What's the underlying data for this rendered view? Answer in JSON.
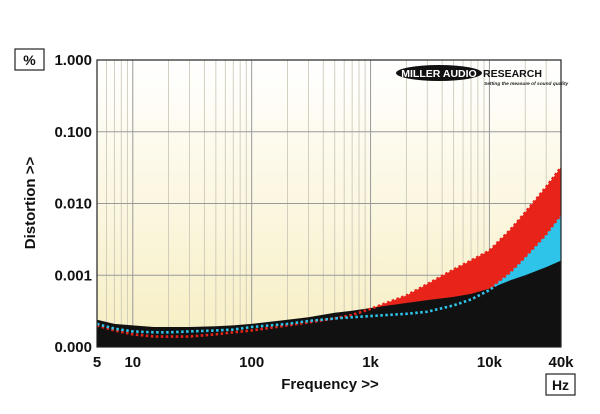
{
  "chart_data": {
    "type": "area",
    "title": "",
    "xlabel": "Frequency >>",
    "ylabel": "Distortion >>",
    "x_scale": "log",
    "y_scale": "log",
    "xlim": [
      5,
      40000
    ],
    "y_unit_label": "%",
    "x_unit_label": "Hz",
    "y_tick_labels": [
      "1.000",
      "0.100",
      "0.010",
      "0.001",
      "0.000"
    ],
    "x_tick_labels": [
      {
        "value": 5,
        "label": "5"
      },
      {
        "value": 10,
        "label": "10"
      },
      {
        "value": 100,
        "label": "100"
      },
      {
        "value": 1000,
        "label": "1k"
      },
      {
        "value": 10000,
        "label": "10k"
      },
      {
        "value": 40000,
        "label": "40k"
      }
    ],
    "series": [
      {
        "color": "#111111",
        "x": [
          5,
          7,
          10,
          15,
          20,
          30,
          50,
          70,
          100,
          200,
          300,
          500,
          700,
          1000,
          2000,
          3000,
          5000,
          7000,
          10000,
          15000,
          20000,
          30000,
          40000
        ],
        "values": [
          0.00024,
          0.00021,
          0.0002,
          0.00019,
          0.00019,
          0.00019,
          0.000195,
          0.0002,
          0.00021,
          0.00024,
          0.00026,
          0.0003,
          0.00032,
          0.00035,
          0.00041,
          0.00045,
          0.0005,
          0.00055,
          0.00065,
          0.00085,
          0.001,
          0.0013,
          0.0016
        ]
      },
      {
        "color": "#2ec4ea",
        "x": [
          5,
          7,
          10,
          15,
          20,
          30,
          50,
          70,
          100,
          200,
          300,
          500,
          700,
          1000,
          2000,
          3000,
          5000,
          7000,
          10000,
          15000,
          20000,
          30000,
          40000
        ],
        "values": [
          0.00021,
          0.00018,
          0.000165,
          0.00016,
          0.00016,
          0.000165,
          0.00017,
          0.000175,
          0.00019,
          0.00021,
          0.00023,
          0.00025,
          0.00026,
          0.00027,
          0.00029,
          0.00031,
          0.00038,
          0.00046,
          0.00062,
          0.00105,
          0.0017,
          0.0035,
          0.0065
        ]
      },
      {
        "color": "#e8231a",
        "x": [
          5,
          7,
          10,
          15,
          20,
          30,
          50,
          70,
          100,
          200,
          300,
          500,
          700,
          1000,
          2000,
          3000,
          5000,
          7000,
          10000,
          15000,
          20000,
          30000,
          40000
        ],
        "values": [
          0.0002,
          0.00017,
          0.00015,
          0.00014,
          0.00014,
          0.00014,
          0.00015,
          0.00016,
          0.00017,
          0.0002,
          0.00022,
          0.00025,
          0.00028,
          0.00034,
          0.00052,
          0.00075,
          0.0012,
          0.0016,
          0.0022,
          0.0043,
          0.0075,
          0.017,
          0.032
        ]
      }
    ],
    "grid": true
  },
  "logo": {
    "text_left": "MILLER AUDIO",
    "text_right": "RESEARCH",
    "tagline": "Setting the measure of sound quality"
  }
}
